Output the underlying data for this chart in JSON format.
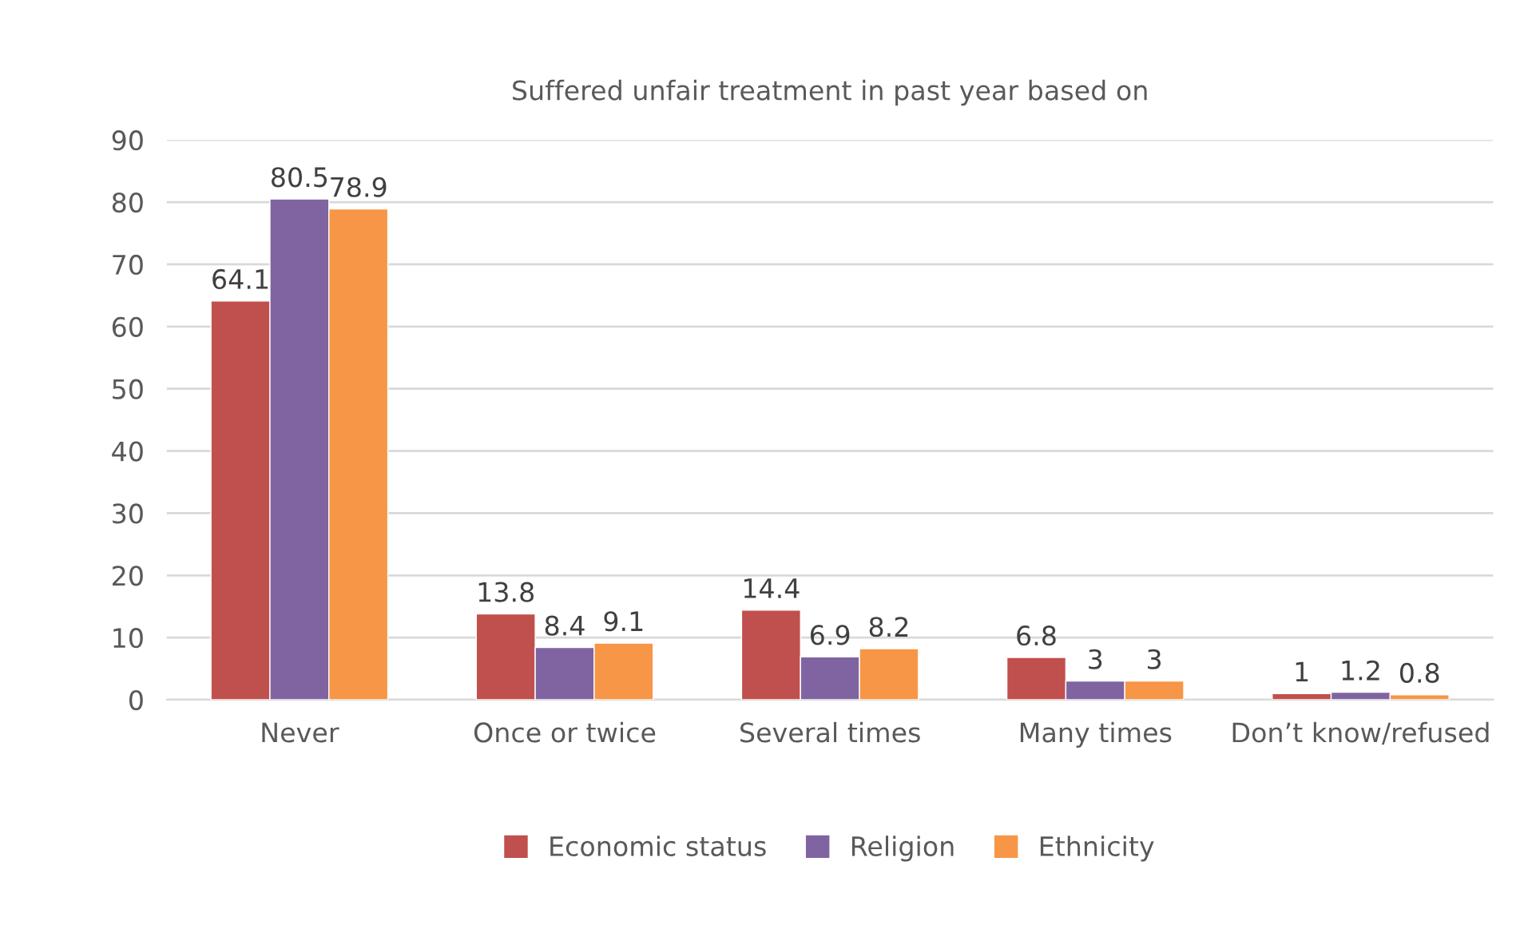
{
  "chart_data": {
    "type": "bar",
    "title": "Suffered unfair treatment in past year based on",
    "categories": [
      "Never",
      "Once or twice",
      "Several times",
      "Many times",
      "Don’t know/refused"
    ],
    "series": [
      {
        "name": "Economic status",
        "color": "#c0504d",
        "values": [
          64.1,
          13.8,
          14.4,
          6.8,
          1
        ]
      },
      {
        "name": "Religion",
        "color": "#8064a2",
        "values": [
          80.5,
          8.4,
          6.9,
          3,
          1.2
        ]
      },
      {
        "name": "Ethnicity",
        "color": "#f79646",
        "values": [
          78.9,
          9.1,
          8.2,
          3,
          0.8
        ]
      }
    ],
    "ylim": [
      0,
      90
    ],
    "yticks": [
      0,
      10,
      20,
      30,
      40,
      50,
      60,
      70,
      80,
      90
    ],
    "grid": "y",
    "legend": "bottom",
    "data_labels": true
  }
}
